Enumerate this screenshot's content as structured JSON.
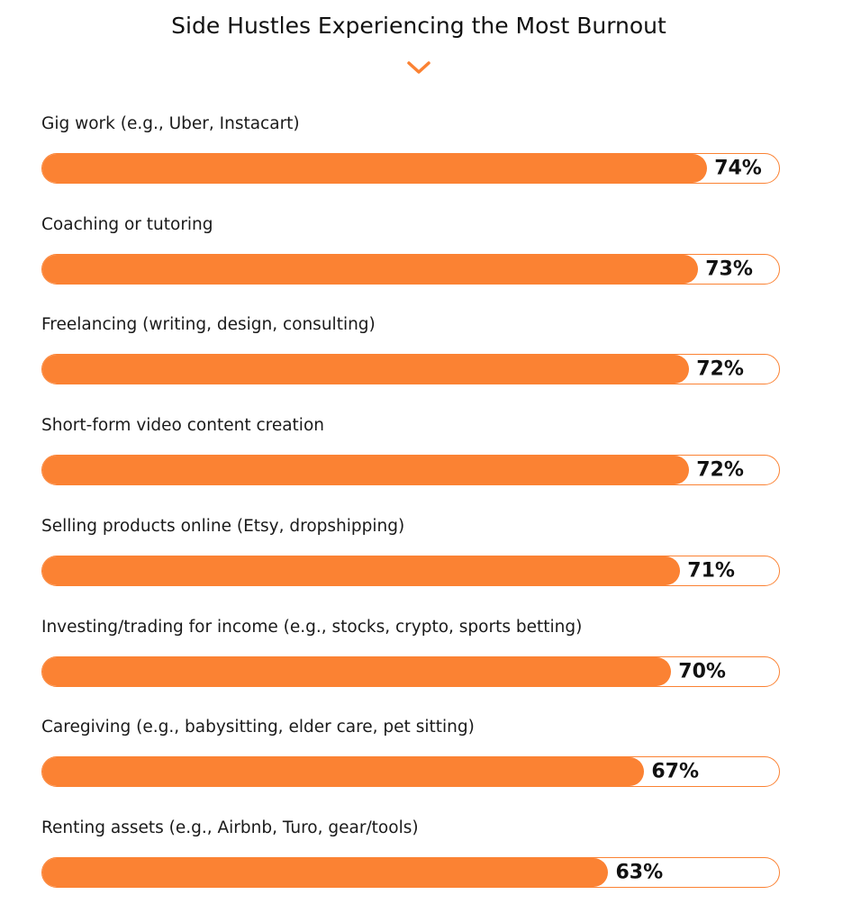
{
  "chart_data": {
    "type": "bar",
    "orientation": "horizontal",
    "title": "Side Hustles Experiencing the Most Burnout",
    "categories": [
      "Gig work (e.g., Uber, Instacart)",
      "Coaching or tutoring",
      "Freelancing (writing, design, consulting)",
      "Short-form video content creation",
      "Selling products online (Etsy, dropshipping)",
      "Investing/trading for income (e.g., stocks, crypto, sports betting)",
      "Caregiving (e.g., babysitting, elder care, pet sitting)",
      "Renting assets (e.g., Airbnb, Turo, gear/tools)"
    ],
    "values": [
      74,
      73,
      72,
      72,
      71,
      70,
      67,
      63
    ],
    "value_labels": [
      "74%",
      "73%",
      "72%",
      "72%",
      "71%",
      "70%",
      "67%",
      "63%"
    ],
    "xlim": [
      0,
      82
    ],
    "grid": false,
    "colors": {
      "bar": "#fb8233",
      "track_border": "#fb8233",
      "title_icon": "#fb8233"
    },
    "title_icon": "chevron-down-icon"
  }
}
